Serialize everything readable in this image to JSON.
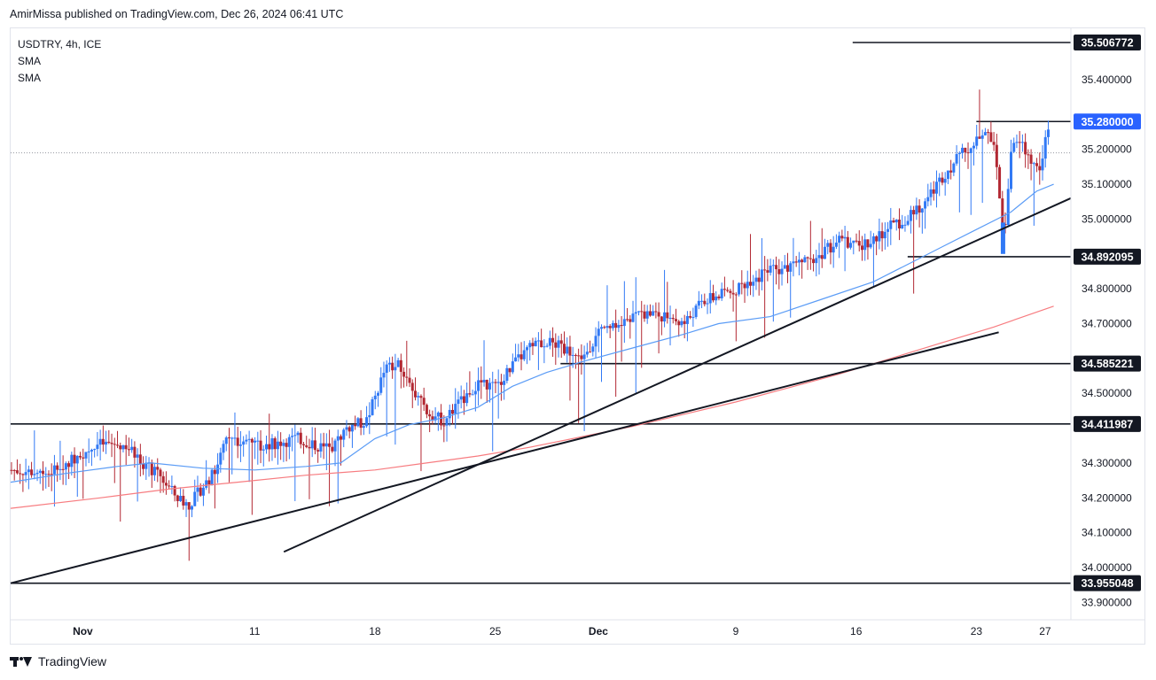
{
  "header": {
    "published": "AmirMissa published on TradingView.com, Dec 26, 2024 06:41 UTC"
  },
  "legend": {
    "symbol": "USDTRY, 4h, ICE",
    "indicator_1": "SMA",
    "indicator_2": "SMA"
  },
  "footer": {
    "brand": "TradingView"
  },
  "colors": {
    "up": "#3179f5",
    "down": "#b22833",
    "sma_fast": "#5b9cf6",
    "sma_slow": "#f77c80",
    "line": "#131722",
    "dotted": "#9598a1"
  },
  "chart_data": {
    "type": "candlestick",
    "symbol": "USDTRY",
    "interval": "4h",
    "exchange": "ICE",
    "ylim": [
      33.85,
      35.55
    ],
    "y_ticks": [
      "35.400000",
      "35.200000",
      "35.100000",
      "35.000000",
      "34.800000",
      "34.700000",
      "34.500000",
      "34.300000",
      "34.200000",
      "34.100000",
      "34.000000",
      "33.900000"
    ],
    "y_tick_values": [
      35.4,
      35.2,
      35.1,
      35.0,
      34.8,
      34.7,
      34.5,
      34.3,
      34.2,
      34.1,
      34.0,
      33.9
    ],
    "x_ticks": [
      {
        "label": "Nov",
        "day": 1
      },
      {
        "label": "11",
        "day": 11
      },
      {
        "label": "18",
        "day": 18
      },
      {
        "label": "25",
        "day": 25
      },
      {
        "label": "Dec",
        "day": 31
      },
      {
        "label": "9",
        "day": 39
      },
      {
        "label": "16",
        "day": 46
      },
      {
        "label": "23",
        "day": 53
      },
      {
        "label": "27",
        "day": 57
      }
    ],
    "xlim_days": [
      -3.2,
      58.5
    ],
    "current_price": {
      "label": "35.280000",
      "value": 35.28
    },
    "dotted_level": 35.19,
    "price_levels": [
      {
        "label": "35.506772",
        "value": 35.506772,
        "from_day": 45.8
      },
      {
        "label": "35.280000",
        "value": 35.28,
        "from_day": 53.0
      },
      {
        "label": "34.892095",
        "value": 34.892095,
        "from_day": 49.0
      },
      {
        "label": "34.585221",
        "value": 34.585221,
        "from_day": 28.8
      },
      {
        "label": "34.411987",
        "value": 34.411987,
        "from_day": -3.2
      },
      {
        "label": "33.955048",
        "value": 33.955048,
        "from_day": -3.2
      }
    ],
    "trendlines": [
      {
        "from": [
          -3.2,
          33.955
        ],
        "to": [
          54.3,
          34.675
        ]
      },
      {
        "from": [
          12.7,
          34.045
        ],
        "to": [
          58.5,
          35.06
        ]
      }
    ],
    "sma_fast": [
      [
        -3.2,
        34.245
      ],
      [
        0.0,
        34.27
      ],
      [
        3.0,
        34.29
      ],
      [
        5.0,
        34.3
      ],
      [
        8.0,
        34.285
      ],
      [
        11.0,
        34.28
      ],
      [
        14.0,
        34.29
      ],
      [
        16.0,
        34.3
      ],
      [
        18.0,
        34.37
      ],
      [
        20.0,
        34.41
      ],
      [
        22.0,
        34.43
      ],
      [
        24.0,
        34.46
      ],
      [
        26.0,
        34.52
      ],
      [
        28.0,
        34.56
      ],
      [
        30.0,
        34.59
      ],
      [
        33.0,
        34.63
      ],
      [
        36.0,
        34.67
      ],
      [
        38.0,
        34.7
      ],
      [
        41.0,
        34.72
      ],
      [
        44.0,
        34.77
      ],
      [
        47.0,
        34.82
      ],
      [
        49.0,
        34.87
      ],
      [
        51.0,
        34.92
      ],
      [
        53.0,
        34.97
      ],
      [
        55.0,
        35.02
      ],
      [
        56.5,
        35.08
      ],
      [
        57.5,
        35.1
      ]
    ],
    "sma_slow": [
      [
        -3.2,
        34.17
      ],
      [
        2.0,
        34.2
      ],
      [
        6.0,
        34.225
      ],
      [
        10.0,
        34.245
      ],
      [
        14.0,
        34.265
      ],
      [
        18.0,
        34.28
      ],
      [
        21.0,
        34.3
      ],
      [
        24.0,
        34.32
      ],
      [
        27.0,
        34.345
      ],
      [
        30.0,
        34.375
      ],
      [
        33.0,
        34.405
      ],
      [
        36.0,
        34.44
      ],
      [
        39.0,
        34.475
      ],
      [
        42.0,
        34.515
      ],
      [
        45.0,
        34.555
      ],
      [
        48.0,
        34.6
      ],
      [
        51.0,
        34.645
      ],
      [
        54.0,
        34.69
      ],
      [
        57.5,
        34.75
      ]
    ],
    "price_path": [
      [
        -3.2,
        34.28
      ],
      [
        -1.0,
        34.27
      ],
      [
        0.0,
        34.3
      ],
      [
        1.0,
        34.33
      ],
      [
        2.0,
        34.355
      ],
      [
        3.5,
        34.35
      ],
      [
        4.5,
        34.3
      ],
      [
        5.5,
        34.26
      ],
      [
        6.5,
        34.2
      ],
      [
        7.2,
        34.18
      ],
      [
        7.8,
        34.22
      ],
      [
        8.6,
        34.27
      ],
      [
        9.3,
        34.36
      ],
      [
        10.5,
        34.37
      ],
      [
        11.5,
        34.35
      ],
      [
        12.5,
        34.36
      ],
      [
        13.5,
        34.37
      ],
      [
        14.5,
        34.35
      ],
      [
        15.5,
        34.34
      ],
      [
        16.3,
        34.4
      ],
      [
        17.5,
        34.42
      ],
      [
        18.6,
        34.57
      ],
      [
        19.5,
        34.58
      ],
      [
        20.3,
        34.5
      ],
      [
        21.0,
        34.45
      ],
      [
        22.0,
        34.42
      ],
      [
        23.0,
        34.48
      ],
      [
        24.0,
        34.53
      ],
      [
        25.0,
        34.52
      ],
      [
        26.0,
        34.58
      ],
      [
        27.0,
        34.63
      ],
      [
        28.0,
        34.65
      ],
      [
        29.0,
        34.63
      ],
      [
        30.0,
        34.6
      ],
      [
        31.0,
        34.67
      ],
      [
        32.0,
        34.69
      ],
      [
        33.0,
        34.72
      ],
      [
        34.0,
        34.73
      ],
      [
        35.0,
        34.72
      ],
      [
        36.0,
        34.7
      ],
      [
        37.0,
        34.76
      ],
      [
        38.0,
        34.78
      ],
      [
        39.0,
        34.8
      ],
      [
        40.0,
        34.83
      ],
      [
        41.0,
        34.85
      ],
      [
        42.0,
        34.86
      ],
      [
        43.0,
        34.88
      ],
      [
        44.0,
        34.9
      ],
      [
        45.0,
        34.94
      ],
      [
        46.0,
        34.92
      ],
      [
        47.0,
        34.94
      ],
      [
        48.0,
        34.98
      ],
      [
        49.0,
        35.0
      ],
      [
        50.0,
        35.05
      ],
      [
        51.0,
        35.12
      ],
      [
        52.0,
        35.18
      ],
      [
        53.0,
        35.22
      ],
      [
        53.8,
        35.25
      ],
      [
        54.2,
        35.15
      ],
      [
        54.6,
        34.93
      ],
      [
        55.0,
        35.2
      ],
      [
        55.6,
        35.22
      ],
      [
        56.0,
        35.18
      ],
      [
        56.6,
        35.14
      ],
      [
        57.3,
        35.28
      ]
    ]
  }
}
